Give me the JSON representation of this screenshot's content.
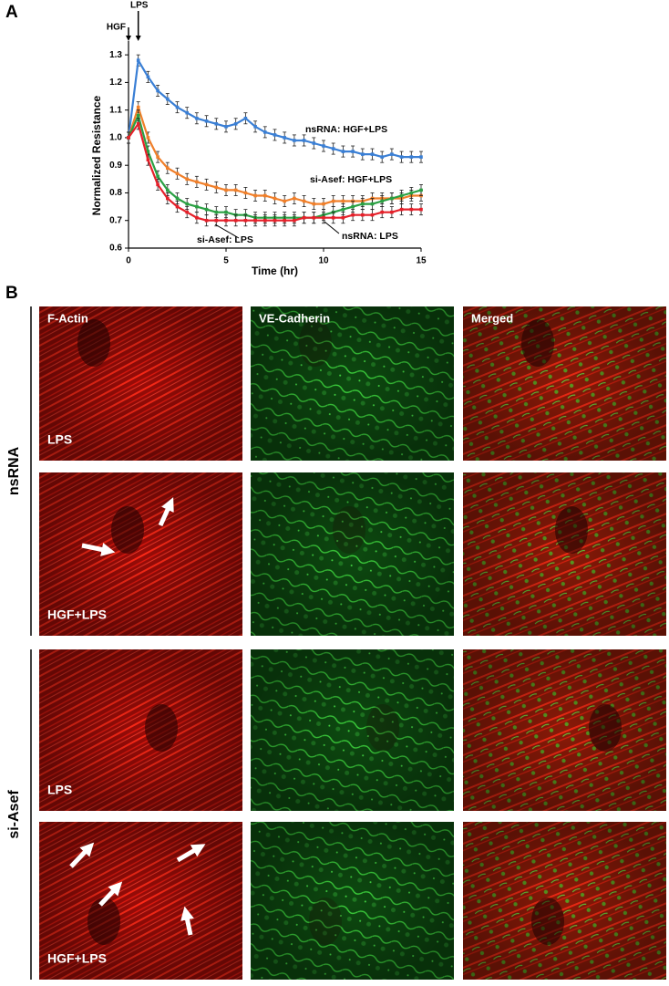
{
  "panel_labels": [
    "A",
    "B"
  ],
  "chart_data": {
    "type": "line",
    "xlabel": "Time (hr)",
    "ylabel": "Normalized Resistance",
    "x": [
      0,
      0.5,
      1,
      1.5,
      2,
      2.5,
      3,
      3.5,
      4,
      4.5,
      5,
      5.5,
      6,
      6.5,
      7,
      7.5,
      8,
      8.5,
      9,
      9.5,
      10,
      10.5,
      11,
      11.5,
      12,
      12.5,
      13,
      13.5,
      14,
      14.5,
      15
    ],
    "series": [
      {
        "name": "nsRNA: HGF+LPS",
        "color": "#3a7fd5",
        "error": 0.02,
        "values": [
          1.0,
          1.28,
          1.22,
          1.17,
          1.14,
          1.11,
          1.09,
          1.07,
          1.06,
          1.05,
          1.04,
          1.05,
          1.07,
          1.04,
          1.02,
          1.01,
          1.0,
          0.99,
          0.99,
          0.98,
          0.97,
          0.96,
          0.95,
          0.95,
          0.94,
          0.94,
          0.93,
          0.94,
          0.93,
          0.93,
          0.93
        ]
      },
      {
        "name": "si-Asef: HGF+LPS",
        "color": "#f07f2a",
        "error": 0.02,
        "values": [
          1.0,
          1.11,
          1.0,
          0.93,
          0.89,
          0.87,
          0.85,
          0.84,
          0.83,
          0.82,
          0.81,
          0.81,
          0.8,
          0.79,
          0.79,
          0.78,
          0.77,
          0.78,
          0.77,
          0.76,
          0.76,
          0.77,
          0.77,
          0.77,
          0.77,
          0.78,
          0.78,
          0.78,
          0.78,
          0.79,
          0.79
        ]
      },
      {
        "name": "nsRNA: LPS",
        "color": "#2aa043",
        "error": 0.02,
        "values": [
          1.0,
          1.08,
          0.95,
          0.86,
          0.81,
          0.78,
          0.76,
          0.75,
          0.74,
          0.73,
          0.73,
          0.72,
          0.72,
          0.71,
          0.71,
          0.71,
          0.71,
          0.71,
          0.71,
          0.71,
          0.72,
          0.73,
          0.74,
          0.75,
          0.76,
          0.76,
          0.77,
          0.78,
          0.79,
          0.8,
          0.81
        ]
      },
      {
        "name": "si-Asef: LPS",
        "color": "#e5202a",
        "error": 0.02,
        "values": [
          1.0,
          1.05,
          0.92,
          0.83,
          0.78,
          0.75,
          0.73,
          0.71,
          0.7,
          0.7,
          0.7,
          0.7,
          0.7,
          0.7,
          0.7,
          0.7,
          0.7,
          0.7,
          0.71,
          0.71,
          0.71,
          0.71,
          0.71,
          0.72,
          0.72,
          0.72,
          0.73,
          0.73,
          0.74,
          0.74,
          0.74
        ]
      }
    ],
    "annotations": [
      {
        "text": "HGF",
        "x": 0
      },
      {
        "text": "LPS",
        "x": 0.5
      }
    ],
    "xlim": [
      0,
      15
    ],
    "xticks": [
      0,
      5,
      10,
      15
    ],
    "ylim": [
      0.6,
      1.35
    ],
    "yticks": [
      0.6,
      0.7,
      0.8,
      0.9,
      {
        "value": 1,
        "label": "1.0"
      },
      1.1,
      1.2,
      1.3
    ]
  },
  "panel_b": {
    "columns": [
      "F-Actin",
      "VE-Cadherin",
      "Merged"
    ],
    "groups": [
      {
        "name": "nsRNA",
        "rows": [
          "LPS",
          "HGF+LPS"
        ]
      },
      {
        "name": "si-Asef",
        "rows": [
          "LPS",
          "HGF+LPS"
        ]
      }
    ]
  }
}
